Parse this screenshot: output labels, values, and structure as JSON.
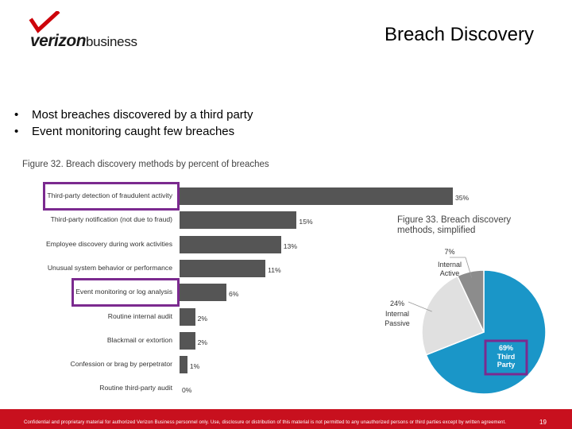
{
  "slide": {
    "title": "Breach Discovery",
    "logo": {
      "brand": "verizon",
      "suffix": "business",
      "brand_color": "#cd040b"
    },
    "bullets": [
      "Most breaches discovered by a third party",
      "Event monitoring caught few breaches"
    ],
    "footer": {
      "text": "Confidential and proprietary material for authorized Verizon Business personnel only. Use, disclosure or distribution of this material is not permitted to any unauthorized persons or third parties except by written agreement.",
      "page_number": "19",
      "bar_color": "#c8101e"
    },
    "highlight_color": "#7b2a8f"
  },
  "chart_data": [
    {
      "type": "bar",
      "orientation": "horizontal",
      "title": "Figure 32. Breach discovery methods by percent of breaches",
      "categories": [
        "Third-party detection of fraudulent activity",
        "Third-party notification (not due to fraud)",
        "Employee discovery during work activities",
        "Unusual system behavior or performance",
        "Event monitoring or log analysis",
        "Routine internal audit",
        "Blackmail or extortion",
        "Confession or brag by perpetrator",
        "Routine third-party audit"
      ],
      "values": [
        35,
        15,
        13,
        11,
        6,
        2,
        2,
        1,
        0
      ],
      "value_labels": [
        "35%",
        "15%",
        "13%",
        "11%",
        "6%",
        "2%",
        "2%",
        "1%",
        "0%"
      ],
      "highlighted": [
        0,
        4
      ],
      "xlim": [
        0,
        35
      ],
      "bar_color": "#555555",
      "grid": false,
      "xlabel": "",
      "ylabel": ""
    },
    {
      "type": "pie",
      "title": "Figure 33. Breach discovery methods, simplified",
      "slices": [
        {
          "label": "Third Party",
          "value": 69,
          "value_label": "69%",
          "color": "#1a96c8"
        },
        {
          "label": "Internal Passive",
          "value": 24,
          "value_label": "24%",
          "color": "#e0e0e0"
        },
        {
          "label": "Internal Active",
          "value": 7,
          "value_label": "7%",
          "color": "#8c8c8c"
        }
      ],
      "highlighted": [
        0
      ]
    }
  ]
}
